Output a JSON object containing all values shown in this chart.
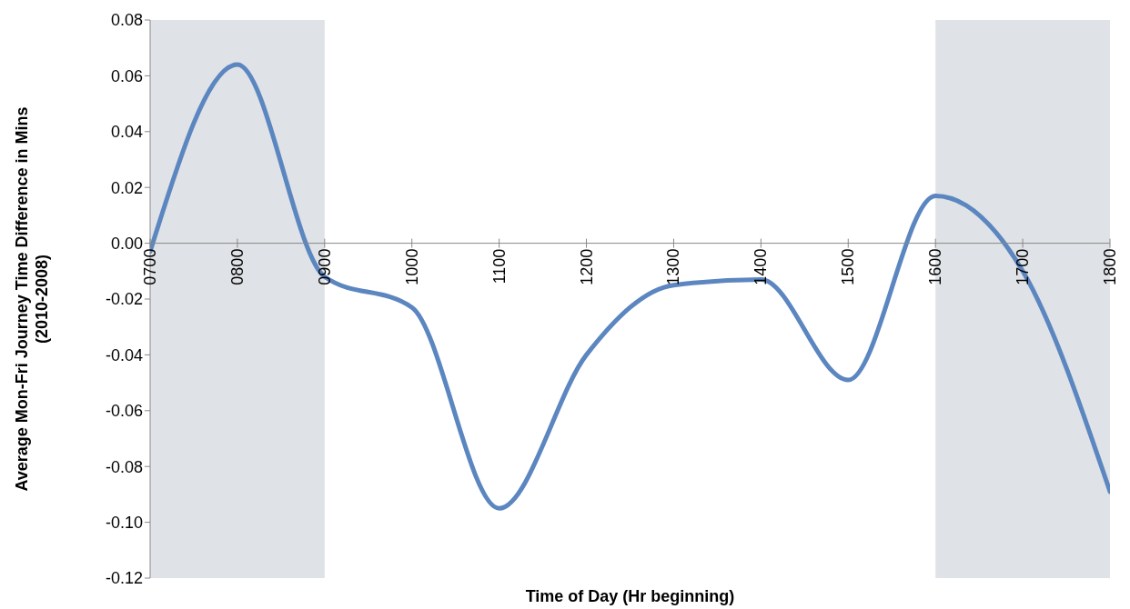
{
  "chart_data": {
    "type": "line",
    "xlabel": "Time of Day (Hr beginning)",
    "ylabel": "Average Mon-Fri Journey Time  Difference in Mins\n(2010-2008)",
    "categories": [
      "0700",
      "0800",
      "0900",
      "1000",
      "1100",
      "1200",
      "1300",
      "1400",
      "1500",
      "1600",
      "1700",
      "1800"
    ],
    "series": [
      {
        "color": "#5b86c0",
        "values": [
          -0.003,
          0.064,
          -0.012,
          -0.023,
          -0.095,
          -0.04,
          -0.015,
          -0.013,
          -0.049,
          0.017,
          -0.01,
          -0.089
        ]
      }
    ],
    "ylim": [
      -0.12,
      0.08
    ],
    "yticks": [
      {
        "value": -0.12,
        "label": "-0.12"
      },
      {
        "value": -0.1,
        "label": "-0.10"
      },
      {
        "value": -0.08,
        "label": "-0.08"
      },
      {
        "value": -0.06,
        "label": "-0.06"
      },
      {
        "value": -0.04,
        "label": "-0.04"
      },
      {
        "value": -0.02,
        "label": "-0.02"
      },
      {
        "value": 0,
        "label": "0.00"
      },
      {
        "value": 0.02,
        "label": "0.02"
      },
      {
        "value": 0.04,
        "label": "0.04"
      },
      {
        "value": 0.06,
        "label": "0.06"
      },
      {
        "value": 0.08,
        "label": "0.08"
      }
    ],
    "bands": [
      {
        "axis": "x",
        "from": "0700",
        "to": "0900",
        "color": "#dfe2e6"
      },
      {
        "axis": "x",
        "from": "1600",
        "to": "1800",
        "color": "#dfe2e6"
      }
    ],
    "grid": false,
    "legend": false,
    "marker": "none",
    "line_style": "solid"
  }
}
